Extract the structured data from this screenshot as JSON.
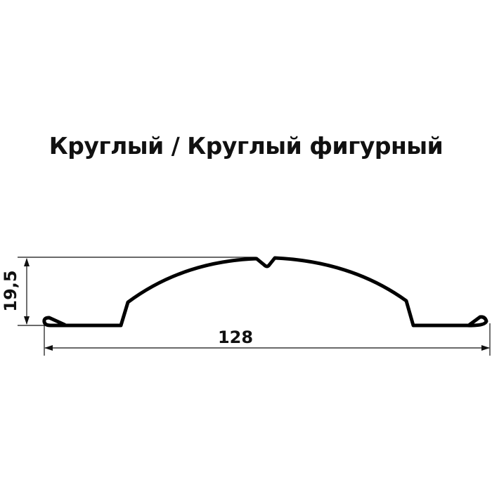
{
  "title": "Круглый / Круглый фигурный",
  "dimensions": {
    "height": "19,5",
    "width": "128"
  }
}
